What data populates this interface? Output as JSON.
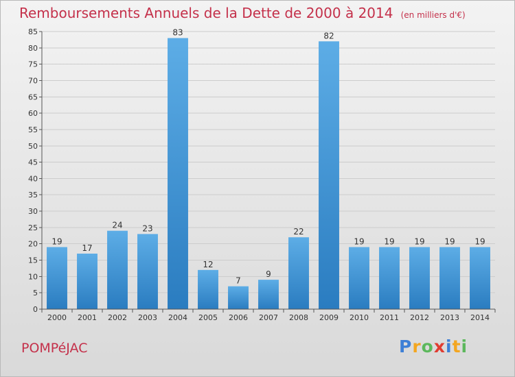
{
  "header": {
    "title": "Remboursements Annuels de la Dette de 2000 à 2014",
    "unit": "(en milliers d'€)"
  },
  "footer": {
    "city": "POMPéJAC",
    "brand_letters": [
      "P",
      "r",
      "o",
      "x",
      "i",
      "t",
      "i"
    ],
    "brand_colors": [
      "#3d7fd6",
      "#f3a620",
      "#5cb85c",
      "#e03c31",
      "#3d7fd6",
      "#f3a620",
      "#5cb85c"
    ]
  },
  "colors": {
    "bar_light": "#5dade6",
    "bar_dark": "#2a7cc0",
    "grid": "#cccccc",
    "title": "#c4304a"
  },
  "chart_data": {
    "type": "bar",
    "title": "Remboursements Annuels de la Dette de 2000 à 2014",
    "xlabel": "",
    "ylabel": "",
    "ylim": [
      0,
      85
    ],
    "yticks": [
      0,
      5,
      10,
      15,
      20,
      25,
      30,
      35,
      40,
      45,
      50,
      55,
      60,
      65,
      70,
      75,
      80,
      85
    ],
    "grid": true,
    "categories": [
      "2000",
      "2001",
      "2002",
      "2003",
      "2004",
      "2005",
      "2006",
      "2007",
      "2008",
      "2009",
      "2010",
      "2011",
      "2012",
      "2013",
      "2014"
    ],
    "values": [
      19,
      17,
      24,
      23,
      83,
      12,
      7,
      9,
      22,
      82,
      19,
      19,
      19,
      19,
      19
    ]
  }
}
